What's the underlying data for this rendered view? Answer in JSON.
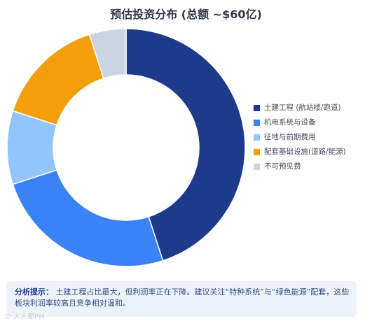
{
  "chart_data": {
    "type": "pie",
    "title": "预估投资分布 (总额 ~$60亿)",
    "categories": [
      "土建工程 (航站楼/跑道)",
      "机电系统与设备",
      "征地与前期费用",
      "配套基础设施(道路/能源)",
      "不可预见费"
    ],
    "values": [
      45,
      25,
      10,
      15,
      5
    ],
    "colors": [
      "#1e3a8a",
      "#3b82f6",
      "#93c5fd",
      "#f59e0b",
      "#cbd5e1"
    ],
    "legend": "right"
  },
  "note": {
    "heading": "分析提示：",
    "text": "土建工程占比最大，但利润率正在下降。建议关注“特种系统”与“绿色能源”配套，这些板块利润率较高且竞争相对温和。"
  },
  "watermark": "© 人人都PM"
}
